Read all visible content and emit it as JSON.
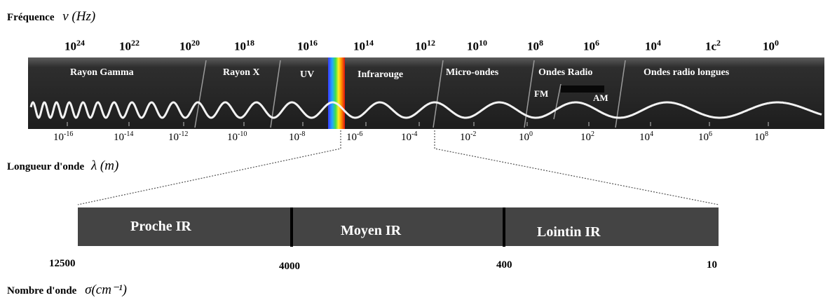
{
  "frequency_axis": {
    "label": "Fréquence",
    "symbol": "ν (Hz)",
    "ticks": [
      {
        "base": "10",
        "exp": "24"
      },
      {
        "base": "10",
        "exp": "22"
      },
      {
        "base": "10",
        "exp": "20"
      },
      {
        "base": "10",
        "exp": "18"
      },
      {
        "base": "10",
        "exp": "16"
      },
      {
        "base": "10",
        "exp": "14"
      },
      {
        "base": "10",
        "exp": "12"
      },
      {
        "base": "10",
        "exp": "10"
      },
      {
        "base": "10",
        "exp": "8"
      },
      {
        "base": "10",
        "exp": "6"
      },
      {
        "base": "10",
        "exp": "4"
      },
      {
        "base": "1c",
        "exp": "2"
      },
      {
        "base": "10",
        "exp": "0"
      }
    ]
  },
  "regions": [
    "Rayon Gamma",
    "Rayon X",
    "UV",
    "Infrarouge",
    "Micro-ondes",
    "Ondes Radio",
    "Ondes radio longues"
  ],
  "radio_sub_bands": [
    "FM",
    "AM"
  ],
  "wavelength_axis": {
    "label": "Longueur d'onde",
    "symbol": "λ (m)",
    "ticks": [
      {
        "base": "10",
        "exp": "-16"
      },
      {
        "base": "10",
        "exp": "-14"
      },
      {
        "base": "10",
        "exp": "-12"
      },
      {
        "base": "10",
        "exp": "-10"
      },
      {
        "base": "10",
        "exp": "-8"
      },
      {
        "base": "10",
        "exp": "-6"
      },
      {
        "base": "10",
        "exp": "-4"
      },
      {
        "base": "10",
        "exp": "-2"
      },
      {
        "base": "10",
        "exp": "0"
      },
      {
        "base": "10",
        "exp": "2"
      },
      {
        "base": "10",
        "exp": "4"
      },
      {
        "base": "10",
        "exp": "6"
      },
      {
        "base": "10",
        "exp": "8"
      }
    ]
  },
  "ir_subregions": [
    "Proche IR",
    "Moyen IR",
    "Lointin IR"
  ],
  "wavenumber_axis": {
    "label": "Nombre d'onde",
    "symbol": "σ(cm⁻¹)",
    "ticks": [
      "12500",
      "4000",
      "400",
      "10"
    ]
  }
}
